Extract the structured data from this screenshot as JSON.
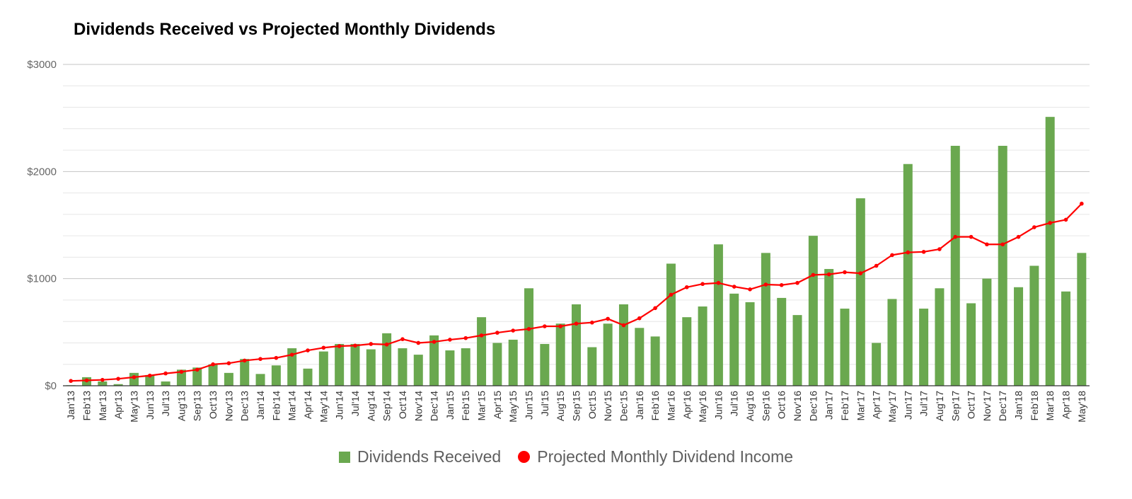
{
  "chart_data": {
    "type": "bar+line",
    "title": "Dividends Received vs Projected Monthly Dividends",
    "xlabel": "",
    "ylabel": "",
    "ylim": [
      0,
      3000
    ],
    "yticks": [
      "$0",
      "$1000",
      "$2000",
      "$3000"
    ],
    "grid": true,
    "legend_position": "bottom",
    "categories": [
      "Jan'13",
      "Feb'13",
      "Mar'13",
      "Apr'13",
      "May'13",
      "Jun'13",
      "Jul'13",
      "Aug'13",
      "Sep'13",
      "Oct'13",
      "Nov'13",
      "Dec'13",
      "Jan'14",
      "Feb'14",
      "Mar'14",
      "Apr'14",
      "May'14",
      "Jun'14",
      "Jul'14",
      "Aug'14",
      "Sep'14",
      "Oct'14",
      "Nov'14",
      "Dec'14",
      "Jan'15",
      "Feb'15",
      "Mar'15",
      "Apr'15",
      "May'15",
      "Jun'15",
      "Jul'15",
      "Aug'15",
      "Sep'15",
      "Oct'15",
      "Nov'15",
      "Dec'15",
      "Jan'16",
      "Feb'16",
      "Mar'16",
      "Apr'16",
      "May'16",
      "Jun'16",
      "Jul'16",
      "Aug'16",
      "Sep'16",
      "Oct'16",
      "Nov'16",
      "Dec'16",
      "Jan'17",
      "Feb'17",
      "Mar'17",
      "Apr'17",
      "May'17",
      "Jun'17",
      "Jul'17",
      "Aug'17",
      "Sep'17",
      "Oct'17",
      "Nov'17",
      "Dec'17",
      "Jan'18",
      "Feb'18",
      "Mar'18",
      "Apr'18",
      "May'18"
    ],
    "series": [
      {
        "name": "Dividends Received",
        "type": "bar",
        "color": "#6aa84f",
        "values": [
          5,
          80,
          40,
          15,
          120,
          100,
          40,
          150,
          170,
          200,
          120,
          250,
          110,
          190,
          350,
          160,
          320,
          390,
          390,
          340,
          490,
          350,
          290,
          470,
          330,
          350,
          640,
          400,
          430,
          910,
          390,
          580,
          760,
          360,
          580,
          760,
          540,
          460,
          1140,
          640,
          740,
          1320,
          860,
          780,
          1240,
          820,
          660,
          1400,
          1090,
          720,
          1750,
          400,
          810,
          2070,
          720,
          910,
          2240,
          770,
          1000,
          2240,
          920,
          1120,
          2510,
          880,
          1240
        ]
      },
      {
        "name": "Projected Monthly Dividend Income",
        "type": "line",
        "color": "#ff0000",
        "values": [
          45,
          50,
          55,
          65,
          80,
          95,
          115,
          130,
          150,
          200,
          210,
          235,
          250,
          260,
          290,
          330,
          355,
          370,
          375,
          390,
          385,
          435,
          400,
          410,
          430,
          445,
          470,
          495,
          515,
          530,
          555,
          555,
          580,
          590,
          625,
          565,
          630,
          725,
          850,
          920,
          950,
          960,
          925,
          900,
          945,
          940,
          960,
          1035,
          1040,
          1060,
          1050,
          1120,
          1220,
          1245,
          1250,
          1275,
          1390,
          1390,
          1320,
          1320,
          1390,
          1480,
          1520,
          1550,
          1700
        ]
      }
    ]
  }
}
